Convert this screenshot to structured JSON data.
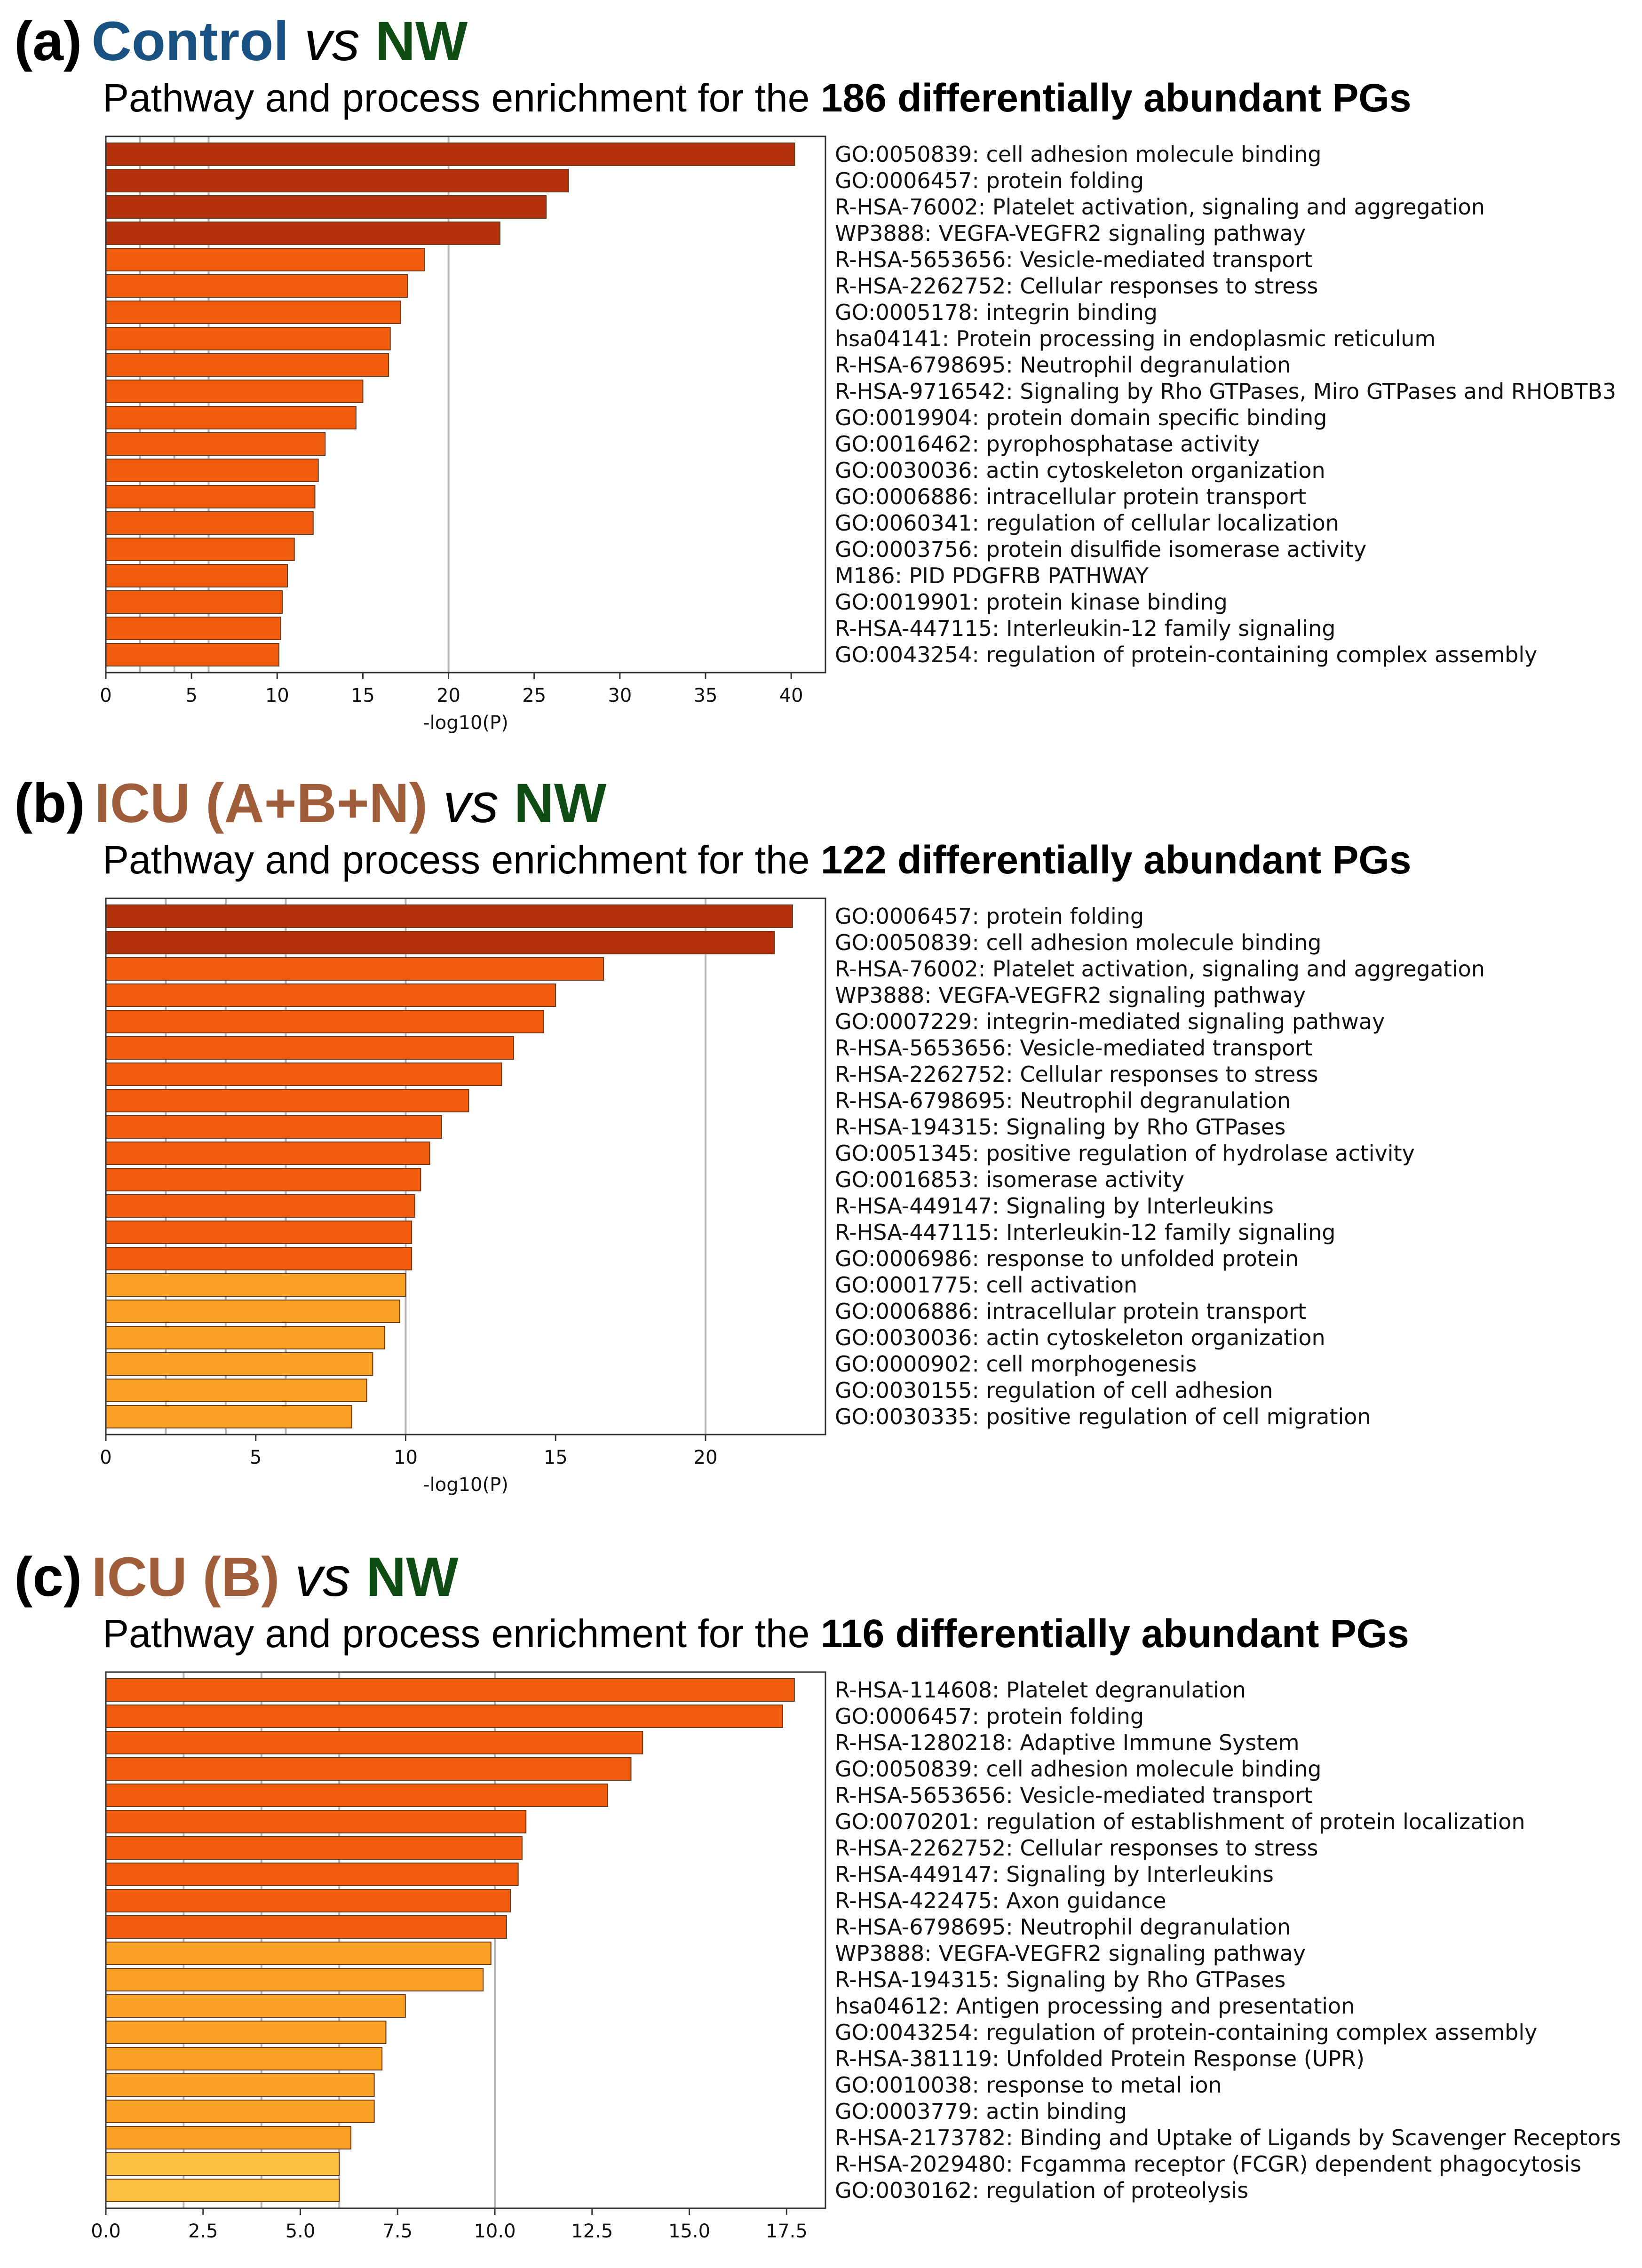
{
  "colors": {
    "control_blue": "#1a5183",
    "nw_green": "#0f4d14",
    "icu_brown": "#a05d3a",
    "gridline": "#b5b5b5",
    "bar_edge": "#6b3a1e"
  },
  "chart_data": [
    {
      "type": "bar",
      "orientation": "horizontal",
      "panel_letter": "(a)",
      "group_a": "Control",
      "vs_text": "vs",
      "group_b": "NW",
      "group_a_color": "#1a5183",
      "subtitle_prefix": "Pathway and process enrichment for the ",
      "subtitle_bold": "186 differentially abundant PGs",
      "xlabel": "-log10(P)",
      "xlim": [
        0,
        42
      ],
      "xticks": [
        0,
        5,
        10,
        15,
        20,
        25,
        30,
        35,
        40
      ],
      "xtick_labels": [
        "0",
        "5",
        "10",
        "15",
        "20",
        "25",
        "30",
        "35",
        "40"
      ],
      "gridlines": [
        2,
        4,
        6,
        20
      ],
      "categories": [
        "GO:0050839: cell adhesion molecule binding",
        "GO:0006457: protein folding",
        "R-HSA-76002: Platelet activation, signaling and aggregation",
        "WP3888: VEGFA-VEGFR2 signaling pathway",
        "R-HSA-5653656: Vesicle-mediated transport",
        "R-HSA-2262752: Cellular responses to stress",
        "GO:0005178: integrin binding",
        "hsa04141: Protein processing in endoplasmic reticulum",
        "R-HSA-6798695: Neutrophil degranulation",
        "R-HSA-9716542: Signaling by Rho GTPases, Miro GTPases and RHOBTB3",
        "GO:0019904: protein domain specific binding",
        "GO:0016462: pyrophosphatase activity",
        "GO:0030036: actin cytoskeleton organization",
        "GO:0006886: intracellular protein transport",
        "GO:0060341: regulation of cellular localization",
        "GO:0003756: protein disulfide isomerase activity",
        "M186: PID PDGFRB PATHWAY",
        "GO:0019901: protein kinase binding",
        "R-HSA-447115: Interleukin-12 family signaling",
        "GO:0043254: regulation of protein-containing complex assembly"
      ],
      "values": [
        40.2,
        27.0,
        25.7,
        23.0,
        18.6,
        17.6,
        17.2,
        16.6,
        16.5,
        15.0,
        14.6,
        12.8,
        12.4,
        12.2,
        12.1,
        11.0,
        10.6,
        10.3,
        10.2,
        10.1
      ],
      "colors": [
        "#b3310b",
        "#b3310b",
        "#b3310b",
        "#b3310b",
        "#f25c0e",
        "#f25c0e",
        "#f25c0e",
        "#f25c0e",
        "#f25c0e",
        "#f25c0e",
        "#f25c0e",
        "#f25c0e",
        "#f25c0e",
        "#f25c0e",
        "#f25c0e",
        "#f25c0e",
        "#f25c0e",
        "#f25c0e",
        "#f25c0e",
        "#f25c0e"
      ]
    },
    {
      "type": "bar",
      "orientation": "horizontal",
      "panel_letter": "(b)",
      "group_a": "ICU (A+B+N)",
      "vs_text": "vs",
      "group_b": "NW",
      "group_a_color": "#a05d3a",
      "subtitle_prefix": "Pathway and process enrichment for the ",
      "subtitle_bold": "122 differentially abundant PGs",
      "xlabel": "-log10(P)",
      "xlim": [
        0,
        24
      ],
      "xticks": [
        0,
        5,
        10,
        15,
        20
      ],
      "xtick_labels": [
        "0",
        "5",
        "10",
        "15",
        "20"
      ],
      "gridlines": [
        2,
        4,
        6,
        10,
        20
      ],
      "categories": [
        "GO:0006457: protein folding",
        "GO:0050839: cell adhesion molecule binding",
        "R-HSA-76002: Platelet activation, signaling and aggregation",
        "WP3888: VEGFA-VEGFR2 signaling pathway",
        "GO:0007229: integrin-mediated signaling pathway",
        "R-HSA-5653656: Vesicle-mediated transport",
        "R-HSA-2262752: Cellular responses to stress",
        "R-HSA-6798695: Neutrophil degranulation",
        "R-HSA-194315: Signaling by Rho GTPases",
        "GO:0051345: positive regulation of hydrolase activity",
        "GO:0016853: isomerase activity",
        "R-HSA-449147: Signaling by Interleukins",
        "R-HSA-447115: Interleukin-12 family signaling",
        "GO:0006986: response to unfolded protein",
        "GO:0001775: cell activation",
        "GO:0006886: intracellular protein transport",
        "GO:0030036: actin cytoskeleton organization",
        "GO:0000902: cell morphogenesis",
        "GO:0030155: regulation of cell adhesion",
        "GO:0030335: positive regulation of cell migration"
      ],
      "values": [
        22.9,
        22.3,
        16.6,
        15.0,
        14.6,
        13.6,
        13.2,
        12.1,
        11.2,
        10.8,
        10.5,
        10.3,
        10.2,
        10.2,
        10.0,
        9.8,
        9.3,
        8.9,
        8.7,
        8.2
      ],
      "colors": [
        "#b3310b",
        "#b3310b",
        "#f25c0e",
        "#f25c0e",
        "#f25c0e",
        "#f25c0e",
        "#f25c0e",
        "#f25c0e",
        "#f25c0e",
        "#f25c0e",
        "#f25c0e",
        "#f25c0e",
        "#f25c0e",
        "#f25c0e",
        "#f9a226",
        "#f9a226",
        "#f9a226",
        "#f9a226",
        "#f9a226",
        "#f9a226"
      ]
    },
    {
      "type": "bar",
      "orientation": "horizontal",
      "panel_letter": "(c)",
      "group_a": "ICU (B)",
      "vs_text": "vs",
      "group_b": "NW",
      "group_a_color": "#a05d3a",
      "subtitle_prefix": "Pathway and process enrichment for the ",
      "subtitle_bold": "116 differentially abundant PGs",
      "xlabel": "",
      "xlim": [
        0,
        18.5
      ],
      "xticks": [
        0,
        2.5,
        5,
        7.5,
        10,
        12.5,
        15,
        17.5
      ],
      "xtick_labels": [
        "0.0",
        "2.5",
        "5.0",
        "7.5",
        "10.0",
        "12.5",
        "15.0",
        "17.5"
      ],
      "gridlines": [
        2,
        4,
        6,
        10
      ],
      "categories": [
        "R-HSA-114608: Platelet degranulation",
        "GO:0006457: protein folding",
        "R-HSA-1280218: Adaptive Immune System",
        "GO:0050839: cell adhesion molecule binding",
        "R-HSA-5653656: Vesicle-mediated transport",
        "GO:0070201: regulation of establishment of protein localization",
        "R-HSA-2262752: Cellular responses to stress",
        "R-HSA-449147: Signaling by Interleukins",
        "R-HSA-422475: Axon guidance",
        "R-HSA-6798695: Neutrophil degranulation",
        "WP3888: VEGFA-VEGFR2 signaling pathway",
        "R-HSA-194315: Signaling by Rho GTPases",
        "hsa04612: Antigen processing and presentation",
        "GO:0043254: regulation of protein-containing complex assembly",
        "R-HSA-381119: Unfolded Protein Response (UPR)",
        "GO:0010038: response to metal ion",
        "GO:0003779: actin binding",
        "R-HSA-2173782: Binding and Uptake of Ligands by Scavenger Receptors",
        "R-HSA-2029480: Fcgamma receptor (FCGR) dependent phagocytosis",
        "GO:0030162: regulation of proteolysis"
      ],
      "values": [
        17.7,
        17.4,
        13.8,
        13.5,
        12.9,
        10.8,
        10.7,
        10.6,
        10.4,
        10.3,
        9.9,
        9.7,
        7.7,
        7.2,
        7.1,
        6.9,
        6.9,
        6.3,
        6.0,
        6.0
      ],
      "colors": [
        "#f25c0e",
        "#f25c0e",
        "#f25c0e",
        "#f25c0e",
        "#f25c0e",
        "#f25c0e",
        "#f25c0e",
        "#f25c0e",
        "#f25c0e",
        "#f25c0e",
        "#f9a226",
        "#f9a226",
        "#f9a226",
        "#f9a226",
        "#f9a226",
        "#f9a226",
        "#f9a226",
        "#f9a226",
        "#fbc03f",
        "#fbc03f"
      ]
    }
  ]
}
